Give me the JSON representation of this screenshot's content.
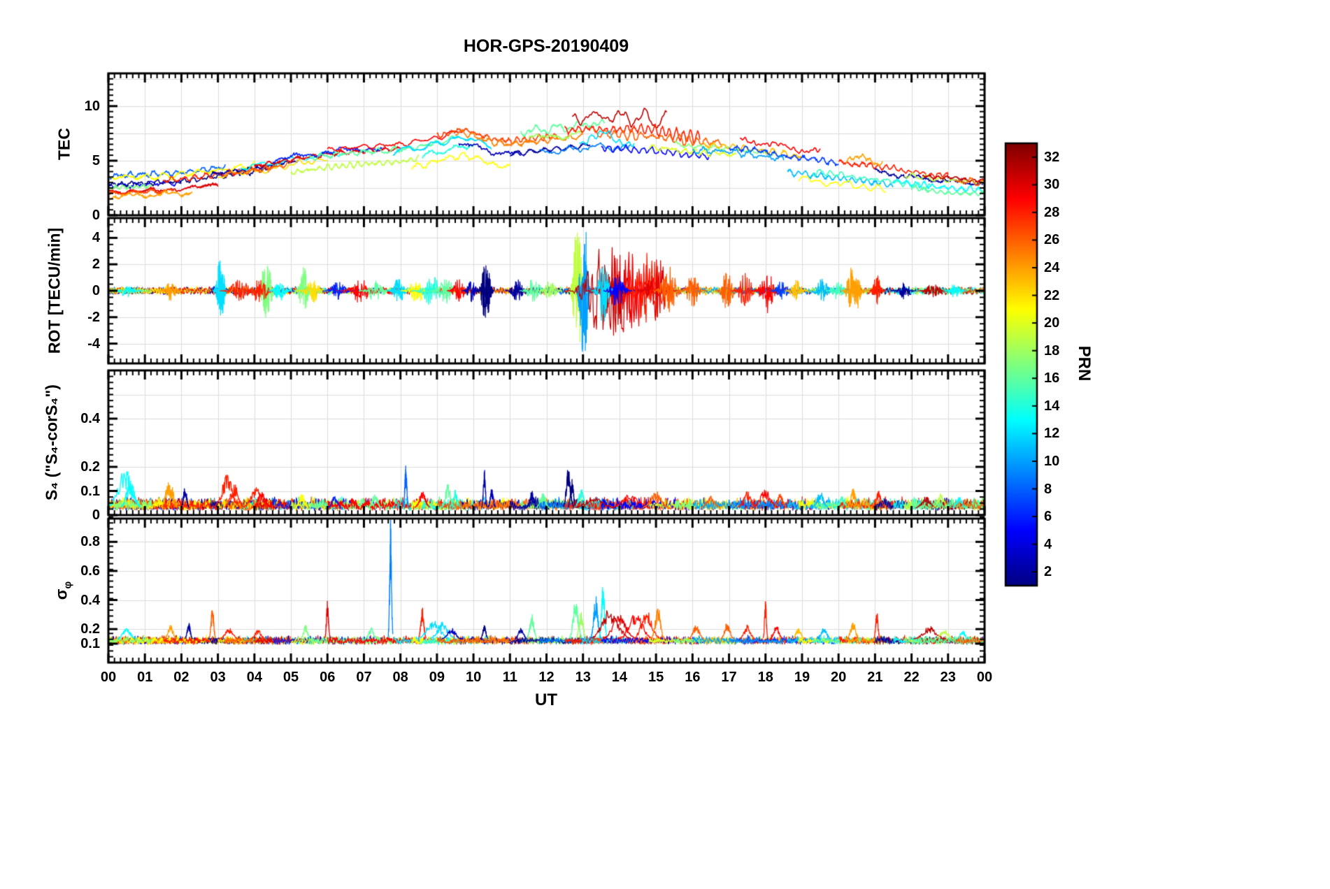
{
  "title": "HOR-GPS-20190409",
  "chart_data": {
    "type": "line",
    "title": "HOR-GPS-20190409",
    "xlabel": "UT",
    "x_range_hours": [
      0,
      24
    ],
    "x_ticks": [
      "00",
      "01",
      "02",
      "03",
      "04",
      "05",
      "06",
      "07",
      "08",
      "09",
      "10",
      "11",
      "12",
      "13",
      "14",
      "15",
      "16",
      "17",
      "18",
      "19",
      "20",
      "21",
      "22",
      "23",
      "00"
    ],
    "colorbar": {
      "label": "PRN",
      "colormap": "jet",
      "range": [
        1,
        32
      ],
      "tick_values": [
        2,
        4,
        6,
        8,
        10,
        12,
        14,
        16,
        18,
        20,
        22,
        24,
        26,
        28,
        30,
        32
      ]
    },
    "panels": [
      {
        "ylabel": "TEC",
        "ylim": [
          0,
          13
        ],
        "ytick_values": [
          0,
          5,
          10
        ],
        "ytick_labels": [
          "0",
          "5",
          "10"
        ],
        "grid_values": [
          2.5,
          5,
          7.5,
          10,
          12.5
        ],
        "minor_step": 0.5
      },
      {
        "ylabel": "ROT [TECU/min]",
        "ylim": [
          -5.5,
          5.5
        ],
        "ytick_values": [
          -4,
          -2,
          0,
          2,
          4
        ],
        "ytick_labels": [
          "-4",
          "-2",
          "0",
          "2",
          "4"
        ],
        "grid_values": [
          -4,
          -2,
          0,
          2,
          4
        ],
        "minor_step": 0.5
      },
      {
        "ylabel": "S₄ (\"S₄-corS₄\")",
        "ylim": [
          0,
          0.6
        ],
        "ytick_values": [
          0,
          0.1,
          0.2,
          0.4
        ],
        "ytick_labels": [
          "0",
          "0.1",
          "0.2",
          "0.4"
        ],
        "grid_values": [
          0.1,
          0.2,
          0.3,
          0.4,
          0.5
        ],
        "minor_step": 0.025
      },
      {
        "ylabel": "σ",
        "ylabel_sub": "φ",
        "ylim": [
          -0.03,
          0.96
        ],
        "ytick_values": [
          0.1,
          0.2,
          0.4,
          0.6,
          0.8
        ],
        "ytick_labels": [
          "0.1",
          "0.2",
          "0.4",
          "0.6",
          "0.8"
        ],
        "grid_values": [
          0.2,
          0.4,
          0.6,
          0.8
        ],
        "minor_step": 0.04
      }
    ],
    "tec_envelope": {
      "t": [
        0,
        2,
        4,
        5,
        6,
        7,
        8,
        9,
        9.7,
        10.5,
        11,
        12,
        12.7,
        13.2,
        14,
        15,
        16,
        17,
        18,
        19,
        20,
        21,
        22,
        23,
        24
      ],
      "v": [
        3,
        3.3,
        4.2,
        4.8,
        5.3,
        5.6,
        5.8,
        6.4,
        7.1,
        6.2,
        6.0,
        6.4,
        6.6,
        6.9,
        6.8,
        6.6,
        6.2,
        6.0,
        5.6,
        5.0,
        4.6,
        4.2,
        3.7,
        3.3,
        3.1
      ]
    },
    "passes": [
      [
        8,
        0,
        3.2,
        0.6,
        0.3
      ],
      [
        5,
        0,
        2.0,
        -0.3,
        0.25
      ],
      [
        1,
        0,
        4.5,
        -0.2,
        0.25
      ],
      [
        30,
        0,
        3.0,
        -0.9,
        0.2
      ],
      [
        27,
        0,
        1.8,
        -1.0,
        0.2
      ],
      [
        24,
        0,
        2.3,
        -1.3,
        0.3
      ],
      [
        21,
        0,
        4.0,
        0.4,
        0.35
      ],
      [
        17,
        0,
        1.2,
        -0.5,
        0.2
      ],
      [
        28,
        1.5,
        4.6,
        0.0,
        0.3
      ],
      [
        2,
        2.8,
        5.2,
        0.1,
        0.25
      ],
      [
        13,
        3.6,
        6.5,
        0.3,
        0.3
      ],
      [
        22,
        3.0,
        6.0,
        -0.2,
        0.3
      ],
      [
        26,
        3.2,
        5.0,
        -0.1,
        0.25
      ],
      [
        30,
        4.0,
        8.0,
        0.3,
        0.2
      ],
      [
        6,
        4.5,
        7.5,
        0.5,
        0.3
      ],
      [
        19,
        5.0,
        8.5,
        -0.9,
        0.3
      ],
      [
        16,
        5.5,
        9.5,
        0.2,
        0.3
      ],
      [
        29,
        6.0,
        9.7,
        0.7,
        0.25
      ],
      [
        12,
        7.8,
        10.5,
        0.1,
        0.4
      ],
      [
        21,
        8.3,
        11.0,
        -1.5,
        0.35
      ],
      [
        14,
        8.6,
        10.0,
        -0.7,
        0.45
      ],
      [
        3,
        9.6,
        11.3,
        -0.4,
        0.3
      ],
      [
        27,
        9.0,
        12.3,
        0.8,
        0.3
      ],
      [
        25,
        9.5,
        13.0,
        0.5,
        0.3
      ],
      [
        16,
        11.3,
        13.6,
        1.5,
        0.45
      ],
      [
        18,
        11.5,
        13.0,
        0.8,
        0.35
      ],
      [
        2,
        11.0,
        13.2,
        -0.4,
        0.3
      ],
      [
        9,
        11.8,
        14.3,
        -0.6,
        0.4
      ],
      [
        31,
        12.7,
        15.3,
        2.2,
        1.0
      ],
      [
        28,
        12.5,
        16.2,
        1.1,
        0.7
      ],
      [
        26,
        13.3,
        16.8,
        0.6,
        0.5
      ],
      [
        12,
        12.9,
        14.4,
        0.2,
        0.8
      ],
      [
        5,
        13.5,
        16.5,
        -0.7,
        0.35
      ],
      [
        20,
        14.8,
        17.2,
        -0.4,
        0.3
      ],
      [
        17,
        15.5,
        18.3,
        0.1,
        0.3
      ],
      [
        23,
        16.3,
        19.0,
        0.3,
        0.3
      ],
      [
        29,
        17.3,
        19.5,
        1.0,
        0.4
      ],
      [
        7,
        17.0,
        20.0,
        0.2,
        0.3
      ],
      [
        11,
        18.6,
        21.5,
        -1.2,
        0.35
      ],
      [
        21,
        18.9,
        21.3,
        -1.7,
        0.4
      ],
      [
        15,
        19.3,
        22.5,
        -0.9,
        0.3
      ],
      [
        28,
        20.0,
        23.0,
        0.3,
        0.3
      ],
      [
        24,
        20.2,
        21.2,
        0.8,
        0.5
      ],
      [
        2,
        21.0,
        24,
        -0.2,
        0.25
      ],
      [
        13,
        21.5,
        24,
        -0.8,
        0.3
      ],
      [
        19,
        21.8,
        24,
        -0.1,
        0.3
      ],
      [
        31,
        22.3,
        24,
        0.1,
        0.2
      ],
      [
        16,
        22.0,
        24,
        -1.2,
        0.25
      ],
      [
        26,
        23.2,
        24,
        -0.1,
        0.3
      ],
      [
        10,
        16.0,
        18.5,
        -0.2,
        0.3
      ]
    ],
    "rot": {
      "baseline_amp": 0.12,
      "bursts": [
        [
          13,
          0.5,
          0.2,
          0.5
        ],
        [
          24,
          1.7,
          0.15,
          0.8
        ],
        [
          12,
          3.05,
          0.09,
          2.4
        ],
        [
          12,
          3.12,
          0.07,
          -1.9
        ],
        [
          28,
          3.6,
          0.25,
          0.9
        ],
        [
          17,
          4.3,
          0.12,
          2.5
        ],
        [
          17,
          4.4,
          0.1,
          -1.6
        ],
        [
          28,
          4.15,
          0.2,
          1.1
        ],
        [
          13,
          4.7,
          0.15,
          0.8
        ],
        [
          17,
          5.35,
          0.12,
          1.9
        ],
        [
          22,
          5.6,
          0.2,
          0.9
        ],
        [
          6,
          6.3,
          0.2,
          0.8
        ],
        [
          29,
          6.9,
          0.25,
          1.0
        ],
        [
          16,
          7.3,
          0.2,
          0.9
        ],
        [
          12,
          7.95,
          0.15,
          1.2
        ],
        [
          21,
          8.45,
          0.2,
          1.0
        ],
        [
          14,
          8.85,
          0.25,
          1.2
        ],
        [
          16,
          9.25,
          0.2,
          1.1
        ],
        [
          29,
          9.6,
          0.15,
          1.0
        ],
        [
          3,
          9.95,
          0.12,
          0.9
        ],
        [
          1,
          10.3,
          0.1,
          2.3
        ],
        [
          1,
          10.4,
          0.08,
          -2.0
        ],
        [
          2,
          11.2,
          0.15,
          0.9
        ],
        [
          16,
          11.65,
          0.18,
          1.1
        ],
        [
          18,
          12.1,
          0.15,
          0.9
        ],
        [
          19,
          12.82,
          0.1,
          4.8
        ],
        [
          19,
          12.9,
          0.08,
          -4.2
        ],
        [
          10,
          13.0,
          0.1,
          5.2
        ],
        [
          10,
          13.07,
          0.08,
          -4.6
        ],
        [
          31,
          13.45,
          0.4,
          3.4
        ],
        [
          31,
          13.85,
          0.35,
          -3.6
        ],
        [
          30,
          14.15,
          0.45,
          3.8
        ],
        [
          29,
          14.5,
          0.4,
          -3.2
        ],
        [
          28,
          14.8,
          0.35,
          3.0
        ],
        [
          30,
          15.05,
          0.25,
          -2.6
        ],
        [
          12,
          13.55,
          0.15,
          2.6
        ],
        [
          5,
          13.95,
          0.18,
          1.6
        ],
        [
          26,
          15.35,
          0.2,
          2.0
        ],
        [
          26,
          16.0,
          0.18,
          1.3
        ],
        [
          26,
          16.95,
          0.15,
          1.6
        ],
        [
          28,
          17.45,
          0.18,
          1.4
        ],
        [
          29,
          18.05,
          0.2,
          1.7
        ],
        [
          7,
          18.45,
          0.15,
          0.9
        ],
        [
          23,
          18.85,
          0.15,
          0.8
        ],
        [
          11,
          19.55,
          0.18,
          0.9
        ],
        [
          15,
          20.0,
          0.15,
          0.8
        ],
        [
          24,
          20.35,
          0.12,
          1.9
        ],
        [
          24,
          20.5,
          0.1,
          -1.5
        ],
        [
          28,
          21.05,
          0.1,
          1.3
        ],
        [
          2,
          21.8,
          0.15,
          0.7
        ],
        [
          31,
          22.6,
          0.2,
          0.6
        ],
        [
          13,
          23.2,
          0.15,
          0.6
        ]
      ]
    },
    "s4": {
      "baseline": 0.018,
      "spikes": [
        [
          13,
          0.45,
          0.25,
          0.17
        ],
        [
          13,
          0.6,
          0.15,
          0.12
        ],
        [
          24,
          1.65,
          0.12,
          0.11
        ],
        [
          24,
          1.75,
          0.08,
          0.09
        ],
        [
          2,
          2.1,
          0.06,
          0.1
        ],
        [
          28,
          3.25,
          0.2,
          0.14
        ],
        [
          28,
          3.45,
          0.15,
          0.1
        ],
        [
          28,
          4.05,
          0.2,
          0.09
        ],
        [
          29,
          4.2,
          0.15,
          0.07
        ],
        [
          21,
          5.3,
          0.1,
          0.06
        ],
        [
          6,
          6.2,
          0.1,
          0.05
        ],
        [
          16,
          7.3,
          0.1,
          0.06
        ],
        [
          8,
          8.15,
          0.04,
          0.19
        ],
        [
          29,
          8.6,
          0.12,
          0.07
        ],
        [
          16,
          9.3,
          0.1,
          0.1
        ],
        [
          14,
          9.5,
          0.08,
          0.08
        ],
        [
          2,
          10.3,
          0.04,
          0.16
        ],
        [
          3,
          10.5,
          0.06,
          0.08
        ],
        [
          2,
          11.6,
          0.08,
          0.07
        ],
        [
          16,
          11.9,
          0.1,
          0.06
        ],
        [
          1,
          12.6,
          0.08,
          0.17
        ],
        [
          1,
          12.7,
          0.06,
          0.12
        ],
        [
          14,
          12.95,
          0.1,
          0.08
        ],
        [
          31,
          13.3,
          0.3,
          0.05
        ],
        [
          29,
          14.3,
          0.3,
          0.06
        ],
        [
          26,
          15.0,
          0.2,
          0.07
        ],
        [
          26,
          16.5,
          0.15,
          0.05
        ],
        [
          28,
          17.5,
          0.15,
          0.07
        ],
        [
          29,
          18.0,
          0.2,
          0.08
        ],
        [
          27,
          18.4,
          0.1,
          0.06
        ],
        [
          11,
          19.5,
          0.12,
          0.07
        ],
        [
          15,
          20.1,
          0.1,
          0.05
        ],
        [
          24,
          20.4,
          0.1,
          0.08
        ],
        [
          28,
          21.1,
          0.1,
          0.07
        ],
        [
          31,
          22.4,
          0.15,
          0.05
        ],
        [
          19,
          22.8,
          0.12,
          0.06
        ],
        [
          13,
          23.3,
          0.1,
          0.05
        ]
      ]
    },
    "sigma_phi": {
      "baseline": 0.105,
      "spikes": [
        [
          13,
          0.5,
          0.15,
          0.08
        ],
        [
          24,
          1.7,
          0.1,
          0.1
        ],
        [
          2,
          2.2,
          0.06,
          0.12
        ],
        [
          26,
          2.85,
          0.05,
          0.24
        ],
        [
          28,
          3.3,
          0.15,
          0.08
        ],
        [
          28,
          4.1,
          0.12,
          0.07
        ],
        [
          17,
          5.4,
          0.08,
          0.1
        ],
        [
          30,
          6.0,
          0.04,
          0.27
        ],
        [
          16,
          7.2,
          0.1,
          0.08
        ],
        [
          9,
          7.73,
          0.035,
          0.83
        ],
        [
          28,
          8.6,
          0.06,
          0.22
        ],
        [
          12,
          8.9,
          0.25,
          0.14
        ],
        [
          12,
          9.15,
          0.2,
          0.12
        ],
        [
          3,
          9.4,
          0.15,
          0.08
        ],
        [
          1,
          10.3,
          0.06,
          0.1
        ],
        [
          2,
          11.3,
          0.1,
          0.08
        ],
        [
          16,
          11.6,
          0.08,
          0.18
        ],
        [
          16,
          12.8,
          0.1,
          0.28
        ],
        [
          18,
          12.95,
          0.08,
          0.2
        ],
        [
          10,
          13.35,
          0.08,
          0.3
        ],
        [
          13,
          13.55,
          0.06,
          0.38
        ],
        [
          31,
          13.75,
          0.3,
          0.22
        ],
        [
          30,
          14.0,
          0.25,
          0.18
        ],
        [
          29,
          14.45,
          0.25,
          0.2
        ],
        [
          28,
          14.75,
          0.2,
          0.22
        ],
        [
          25,
          15.05,
          0.1,
          0.24
        ],
        [
          26,
          16.1,
          0.12,
          0.1
        ],
        [
          26,
          16.95,
          0.1,
          0.12
        ],
        [
          28,
          17.5,
          0.12,
          0.1
        ],
        [
          28,
          18.0,
          0.035,
          0.3
        ],
        [
          29,
          18.3,
          0.1,
          0.1
        ],
        [
          23,
          18.9,
          0.1,
          0.08
        ],
        [
          11,
          19.6,
          0.12,
          0.08
        ],
        [
          24,
          20.4,
          0.1,
          0.12
        ],
        [
          28,
          21.05,
          0.045,
          0.21
        ],
        [
          31,
          22.5,
          0.25,
          0.09
        ],
        [
          19,
          22.9,
          0.15,
          0.07
        ],
        [
          13,
          23.4,
          0.1,
          0.06
        ]
      ]
    }
  }
}
